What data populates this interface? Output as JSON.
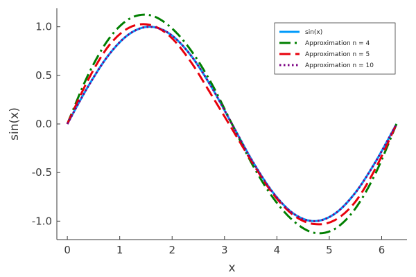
{
  "chart_data": {
    "type": "line",
    "title": "",
    "xlabel": "x",
    "ylabel": "sin(x)",
    "xlim": [
      -0.2,
      6.483
    ],
    "ylim": [
      -1.19,
      1.19
    ],
    "xticks": [
      0,
      1,
      2,
      3,
      4,
      5,
      6
    ],
    "xtick_labels": [
      "0",
      "1",
      "2",
      "3",
      "4",
      "5",
      "6"
    ],
    "yticks": [
      -1.0,
      -0.5,
      0.0,
      0.5,
      1.0
    ],
    "ytick_labels": [
      "-1.0",
      "-0.5",
      "0.0",
      "0.5",
      "1.0"
    ],
    "grid": false,
    "legend_position": "top-right",
    "series": [
      {
        "name": "sin(x)",
        "color": "#009AFA",
        "dash": "solid",
        "x": [
          0,
          0.393,
          0.785,
          1.178,
          1.571,
          1.963,
          2.356,
          2.749,
          3.142,
          3.534,
          3.927,
          4.32,
          4.712,
          5.105,
          5.498,
          5.89,
          6.283
        ],
        "y": [
          0,
          0.383,
          0.707,
          0.924,
          1.0,
          0.924,
          0.707,
          0.383,
          0.0,
          -0.383,
          -0.707,
          -0.924,
          -1.0,
          -0.924,
          -0.707,
          -0.383,
          0.0
        ]
      },
      {
        "name": "Approximation n = 4",
        "color": "#007F00",
        "dash": "dashdot",
        "x": [
          0,
          0.393,
          0.785,
          1.178,
          1.571,
          1.963,
          2.356,
          2.749,
          3.142,
          3.534,
          3.927,
          4.32,
          4.712,
          5.105,
          5.498,
          5.89,
          6.283
        ],
        "y": [
          0,
          0.5,
          0.87,
          1.08,
          1.12,
          1.0,
          0.76,
          0.42,
          0.0,
          -0.42,
          -0.76,
          -1.0,
          -1.12,
          -1.08,
          -0.87,
          -0.5,
          0.0
        ]
      },
      {
        "name": "Approximation n = 5",
        "color": "#E8000B",
        "dash": "dash",
        "x": [
          0,
          0.393,
          0.785,
          1.178,
          1.571,
          1.963,
          2.356,
          2.749,
          3.142,
          3.534,
          3.927,
          4.32,
          4.712,
          5.105,
          5.498,
          5.89,
          6.283
        ],
        "y": [
          0,
          0.45,
          0.8,
          0.99,
          1.02,
          0.9,
          0.64,
          0.3,
          -0.05,
          -0.4,
          -0.72,
          -0.94,
          -1.03,
          -0.99,
          -0.8,
          -0.45,
          0.0
        ]
      },
      {
        "name": "Approximation n = 10",
        "color": "#7B0083",
        "dash": "dot",
        "x": [
          0,
          0.393,
          0.785,
          1.178,
          1.571,
          1.963,
          2.356,
          2.749,
          3.142,
          3.534,
          3.927,
          4.32,
          4.712,
          5.105,
          5.498,
          5.89,
          6.283
        ],
        "y": [
          0,
          0.383,
          0.707,
          0.924,
          1.0,
          0.924,
          0.707,
          0.383,
          0.0,
          -0.383,
          -0.707,
          -0.924,
          -1.0,
          -0.924,
          -0.707,
          -0.383,
          0.0
        ]
      }
    ]
  }
}
